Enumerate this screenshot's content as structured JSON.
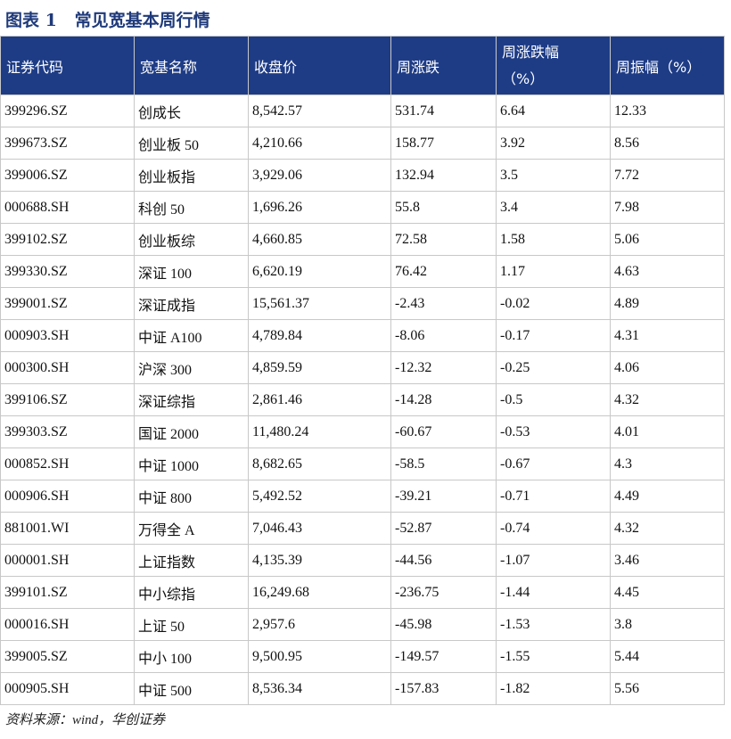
{
  "title": "图表 1   常见宽基本周行情",
  "table": {
    "header": [
      "证券代码",
      "宽基名称",
      "收盘价",
      "周涨跌",
      "周涨跌幅（%）",
      "周振幅（%）"
    ],
    "rows": [
      [
        "399296.SZ",
        "创成长",
        "8,542.57",
        "531.74",
        "6.64",
        "12.33"
      ],
      [
        "399673.SZ",
        "创业板 50",
        "4,210.66",
        "158.77",
        "3.92",
        "8.56"
      ],
      [
        "399006.SZ",
        "创业板指",
        "3,929.06",
        "132.94",
        "3.5",
        "7.72"
      ],
      [
        "000688.SH",
        "科创 50",
        "1,696.26",
        "55.8",
        "3.4",
        "7.98"
      ],
      [
        "399102.SZ",
        "创业板综",
        "4,660.85",
        "72.58",
        "1.58",
        "5.06"
      ],
      [
        "399330.SZ",
        "深证 100",
        "6,620.19",
        "76.42",
        "1.17",
        "4.63"
      ],
      [
        "399001.SZ",
        "深证成指",
        "15,561.37",
        "-2.43",
        "-0.02",
        "4.89"
      ],
      [
        "000903.SH",
        "中证 A100",
        "4,789.84",
        "-8.06",
        "-0.17",
        "4.31"
      ],
      [
        "000300.SH",
        "沪深 300",
        "4,859.59",
        "-12.32",
        "-0.25",
        "4.06"
      ],
      [
        "399106.SZ",
        "深证综指",
        "2,861.46",
        "-14.28",
        "-0.5",
        "4.32"
      ],
      [
        "399303.SZ",
        "国证 2000",
        "11,480.24",
        "-60.67",
        "-0.53",
        "4.01"
      ],
      [
        "000852.SH",
        "中证 1000",
        "8,682.65",
        "-58.5",
        "-0.67",
        "4.3"
      ],
      [
        "000906.SH",
        "中证 800",
        "5,492.52",
        "-39.21",
        "-0.71",
        "4.49"
      ],
      [
        "881001.WI",
        "万得全 A",
        "7,046.43",
        "-52.87",
        "-0.74",
        "4.32"
      ],
      [
        "000001.SH",
        "上证指数",
        "4,135.39",
        "-44.56",
        "-1.07",
        "3.46"
      ],
      [
        "399101.SZ",
        "中小综指",
        "16,249.68",
        "-236.75",
        "-1.44",
        "4.45"
      ],
      [
        "000016.SH",
        "上证 50",
        "2,957.6",
        "-45.98",
        "-1.53",
        "3.8"
      ],
      [
        "399005.SZ",
        "中小 100",
        "9,500.95",
        "-149.57",
        "-1.55",
        "5.44"
      ],
      [
        "000905.SH",
        "中证 500",
        "8,536.34",
        "-157.83",
        "-1.82",
        "5.56"
      ]
    ]
  },
  "source": "资料来源：wind，华创证券"
}
